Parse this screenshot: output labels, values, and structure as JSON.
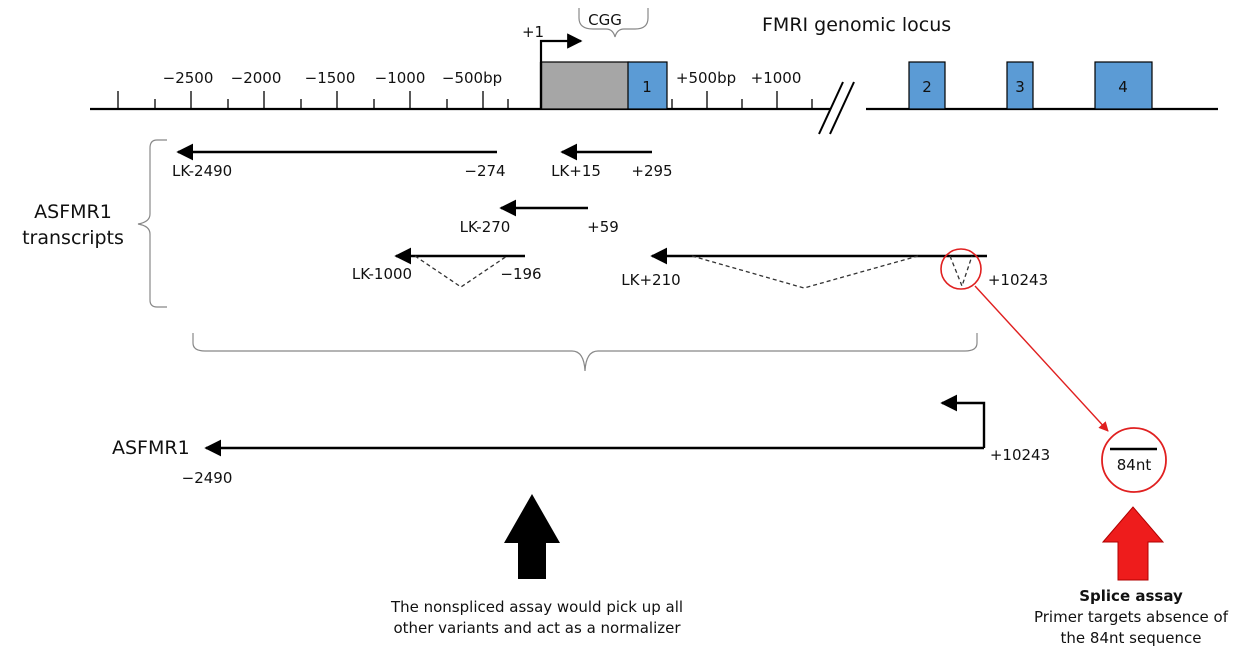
{
  "locus": {
    "title": "FMRI genomic locus",
    "tss_label": "+1",
    "repeat_label": "CGG",
    "scale_labels": [
      "−2500",
      "−2000",
      "−1500",
      "−1000",
      "−500bp",
      "+500bp",
      "+1000"
    ],
    "exons": [
      "1",
      "2",
      "3",
      "4"
    ],
    "colors": {
      "exon": "#5b9bd5",
      "promoter": "#a6a6a6",
      "highlight": "#e02020"
    }
  },
  "transcripts": {
    "group_label": "ASFMR1 transcripts",
    "group_label_lines": [
      "ASFMR1",
      "transcripts"
    ],
    "items": [
      {
        "name": "LK-2490",
        "end": "−274",
        "spliced": false
      },
      {
        "name": "LK+15",
        "end": "+295",
        "spliced": false
      },
      {
        "name": "LK-270",
        "end": "+59",
        "spliced": false
      },
      {
        "name": "LK-1000",
        "end": "−196",
        "spliced": true
      },
      {
        "name": "LK+210",
        "end": "+10243",
        "spliced": true
      }
    ]
  },
  "summary": {
    "name": "ASFMR1",
    "start": "−2490",
    "end": "+10243"
  },
  "splice": {
    "segment_label": "84nt"
  },
  "nonspliced_assay": {
    "lines": [
      "The nonspliced assay would pick up all",
      "other variants and act as a normalizer"
    ]
  },
  "splice_assay": {
    "title": "Splice assay",
    "lines": [
      "Primer targets absence of",
      "the 84nt sequence"
    ]
  }
}
